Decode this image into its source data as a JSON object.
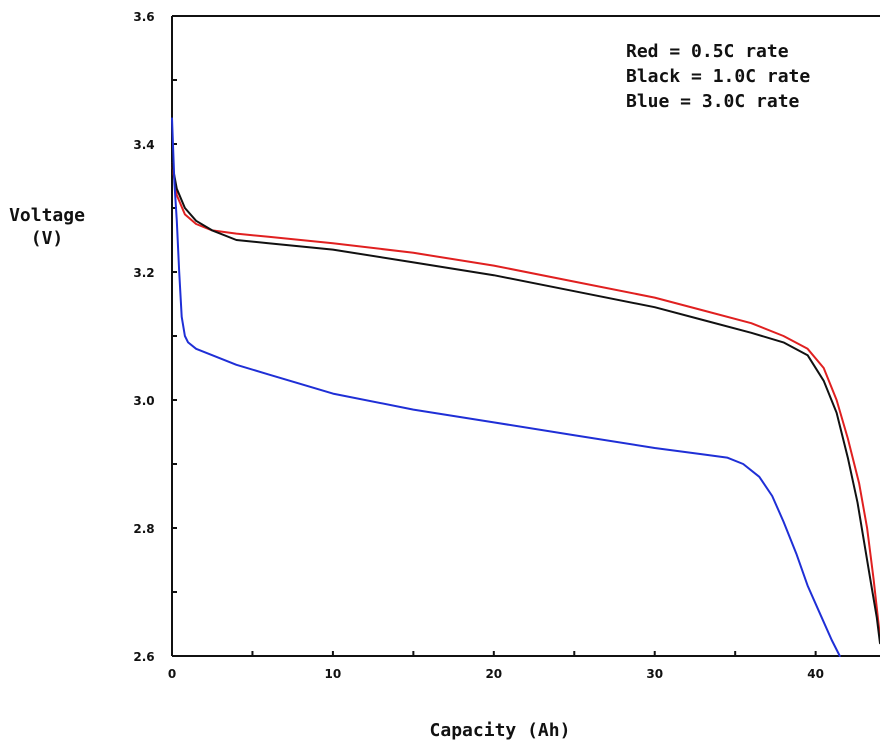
{
  "chart_data": {
    "type": "line",
    "title": "",
    "xlabel": "Capacity (Ah)",
    "ylabel_lines": [
      "Voltage",
      "(V)"
    ],
    "xlim": [
      0,
      44
    ],
    "ylim": [
      2.6,
      3.6
    ],
    "x_ticks": [
      0,
      10,
      20,
      30,
      40
    ],
    "y_ticks": [
      2.6,
      2.8,
      3.0,
      3.2,
      3.4,
      3.6
    ],
    "y_tick_labels": [
      "2.6",
      "2.8",
      "3.0",
      "3.2",
      "3.4",
      "3.6"
    ],
    "x_minor_step": 5,
    "y_minor_step": 0.1,
    "grid": false,
    "legend_position": "top-right",
    "legend": [
      "Red = 0.5C rate",
      "Black = 1.0C rate",
      "Blue = 3.0C rate"
    ],
    "series": [
      {
        "color": "#e02020",
        "x": [
          0,
          0.3,
          0.8,
          1.5,
          2.5,
          4,
          6,
          10,
          15,
          20,
          25,
          30,
          33,
          36,
          38,
          39.5,
          40.5,
          41.3,
          42,
          42.7,
          43.2,
          43.6,
          44
        ],
        "y": [
          3.37,
          3.32,
          3.29,
          3.275,
          3.265,
          3.26,
          3.255,
          3.245,
          3.23,
          3.21,
          3.185,
          3.16,
          3.14,
          3.12,
          3.1,
          3.08,
          3.05,
          3.0,
          2.94,
          2.87,
          2.8,
          2.72,
          2.63
        ]
      },
      {
        "color": "#111111",
        "x": [
          0,
          0.3,
          0.8,
          1.5,
          2.5,
          4,
          6,
          10,
          15,
          20,
          25,
          30,
          33,
          36,
          38,
          39.5,
          40.5,
          41.3,
          42,
          42.6,
          43,
          43.4,
          43.8,
          44
        ],
        "y": [
          3.37,
          3.33,
          3.3,
          3.28,
          3.265,
          3.25,
          3.245,
          3.235,
          3.215,
          3.195,
          3.17,
          3.145,
          3.125,
          3.105,
          3.09,
          3.07,
          3.03,
          2.98,
          2.91,
          2.84,
          2.78,
          2.72,
          2.66,
          2.62
        ]
      },
      {
        "color": "#1f2fd6",
        "x": [
          0,
          0.15,
          0.3,
          0.45,
          0.6,
          0.8,
          1.0,
          1.5,
          2.5,
          4,
          6,
          10,
          15,
          20,
          25,
          30,
          33,
          34.5,
          35.5,
          36.5,
          37.3,
          38,
          38.8,
          39.5,
          40.2,
          41,
          41.5
        ],
        "y": [
          3.44,
          3.34,
          3.28,
          3.2,
          3.13,
          3.1,
          3.09,
          3.08,
          3.07,
          3.055,
          3.04,
          3.01,
          2.985,
          2.965,
          2.945,
          2.925,
          2.915,
          2.91,
          2.9,
          2.88,
          2.85,
          2.81,
          2.76,
          2.71,
          2.67,
          2.625,
          2.6
        ]
      }
    ]
  }
}
